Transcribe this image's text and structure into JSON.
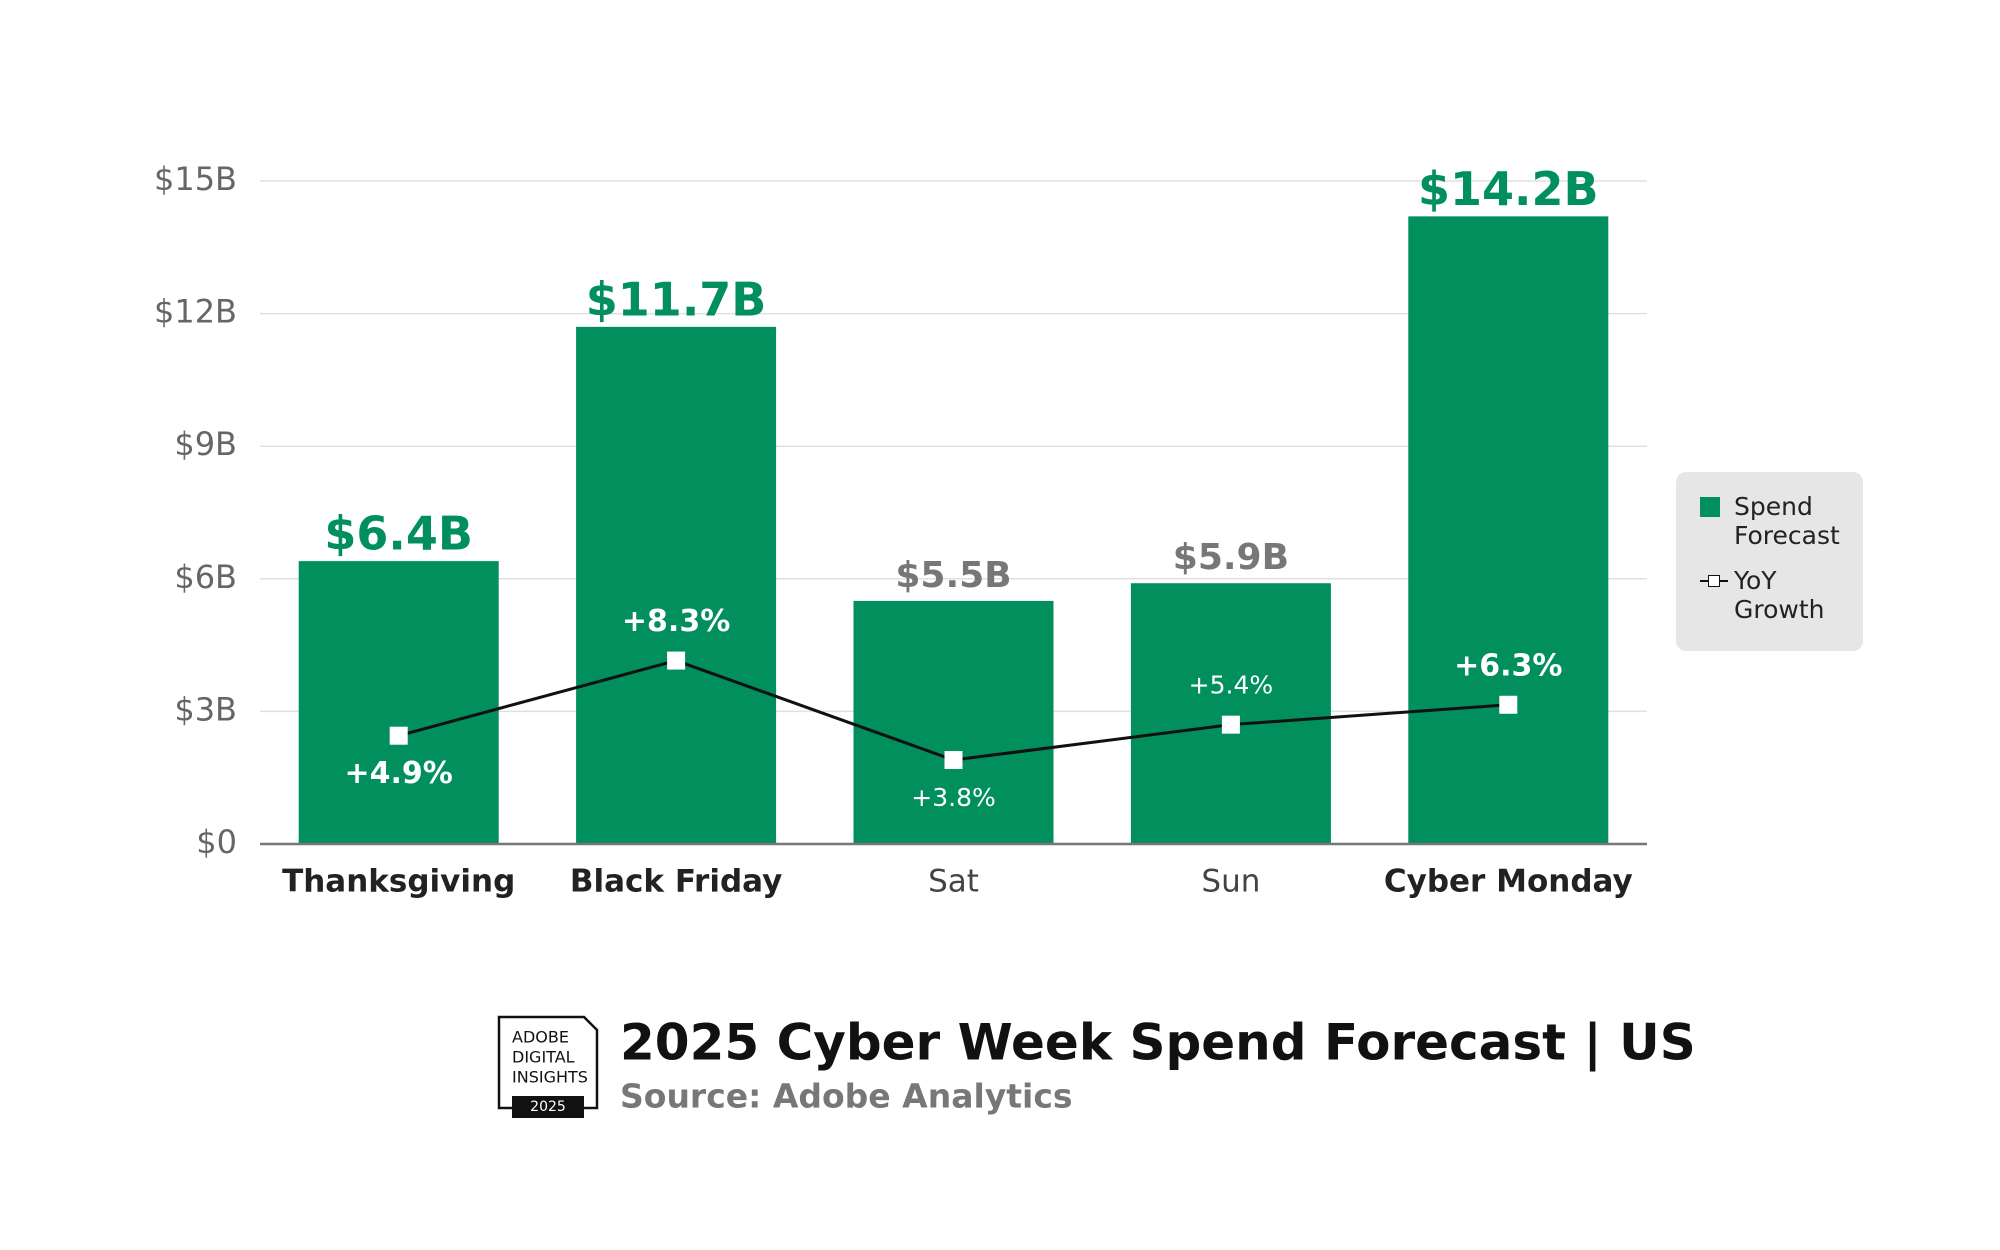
{
  "chart_data": {
    "type": "bar",
    "title": "2025 Cyber Week Spend Forecast | US",
    "subtitle": "Source: Adobe Analytics",
    "badge": {
      "lines": [
        "ADOBE",
        "DIGITAL",
        "INSIGHTS"
      ],
      "year": "2025"
    },
    "categories": [
      "Thanksgiving",
      "Black Friday",
      "Sat",
      "Sun",
      "Cyber Monday"
    ],
    "emphasis": [
      true,
      true,
      false,
      false,
      true
    ],
    "series": [
      {
        "name": "Spend Forecast",
        "type": "bar",
        "color": "#008f5d",
        "values": [
          6.4,
          11.7,
          5.5,
          5.9,
          14.2
        ],
        "value_labels": [
          "$6.4B",
          "$11.7B",
          "$5.5B",
          "$5.9B",
          "$14.2B"
        ]
      },
      {
        "name": "YoY Growth",
        "type": "line",
        "axis": "y2",
        "color": "#111111",
        "values": [
          4.9,
          8.3,
          3.8,
          5.4,
          6.3
        ],
        "value_labels": [
          "+4.9%",
          "+8.3%",
          "+3.8%",
          "+5.4%",
          "+6.3%"
        ]
      }
    ],
    "ylim": [
      0,
      15
    ],
    "yticks": [
      {
        "value": 0,
        "label": "$0"
      },
      {
        "value": 3,
        "label": "$3B"
      },
      {
        "value": 6,
        "label": "$6B"
      },
      {
        "value": 9,
        "label": "$9B"
      },
      {
        "value": 12,
        "label": "$12B"
      },
      {
        "value": 15,
        "label": "$15B"
      }
    ],
    "y2lim": [
      0,
      30
    ],
    "grid": true,
    "legend": "right"
  }
}
